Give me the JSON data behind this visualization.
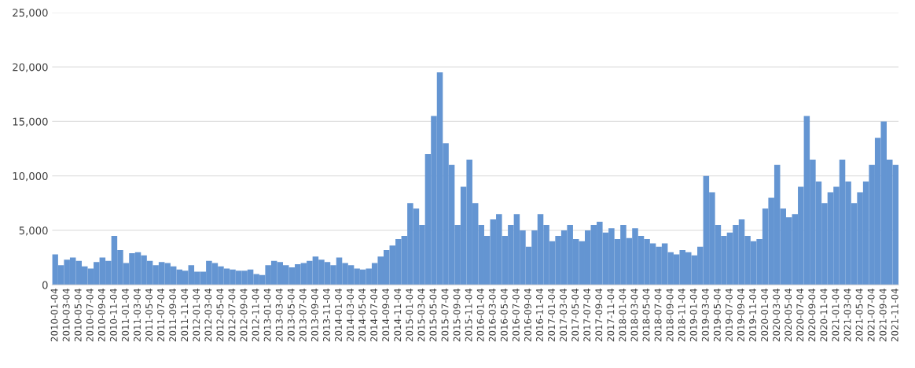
{
  "chart_data": {
    "type": "bar",
    "color": "#6495d2",
    "categories": [
      "2010-01-04",
      null,
      "2010-03-04",
      null,
      "2010-05-04",
      null,
      "2010-07-04",
      null,
      "2010-09-04",
      null,
      "2010-11-04",
      null,
      "2011-01-04",
      null,
      "2011-03-04",
      null,
      "2011-05-04",
      null,
      "2011-07-04",
      null,
      "2011-09-04",
      null,
      "2011-11-04",
      null,
      "2012-01-04",
      null,
      "2012-03-04",
      null,
      "2012-05-04",
      null,
      "2012-07-04",
      null,
      "2012-09-04",
      null,
      "2012-11-04",
      null,
      "2013-01-04",
      null,
      "2013-03-04",
      null,
      "2013-05-04",
      null,
      "2013-07-04",
      null,
      "2013-09-04",
      null,
      "2013-11-04",
      null,
      "2014-01-04",
      null,
      "2014-03-04",
      null,
      "2014-05-04",
      null,
      "2014-07-04",
      null,
      "2014-09-04",
      null,
      "2014-11-04",
      null,
      "2015-01-04",
      null,
      "2015-03-04",
      null,
      "2015-05-04",
      null,
      "2015-07-04",
      null,
      "2015-09-04",
      null,
      "2015-11-04",
      null,
      "2016-01-04",
      null,
      "2016-03-04",
      null,
      "2016-05-04",
      null,
      "2016-07-04",
      null,
      "2016-09-04",
      null,
      "2016-11-04",
      null,
      "2017-01-04",
      null,
      "2017-03-04",
      null,
      "2017-05-04",
      null,
      "2017-07-04",
      null,
      "2017-09-04",
      null,
      "2017-11-04",
      null,
      "2018-01-04",
      null,
      "2018-03-04",
      null,
      "2018-05-04",
      null,
      "2018-07-04",
      null,
      "2018-09-04",
      null,
      "2018-11-04",
      null,
      "2019-01-04",
      null,
      "2019-03-04",
      null,
      "2019-05-04",
      null,
      "2019-07-04",
      null,
      "2019-09-04",
      null,
      "2019-11-04",
      null,
      "2020-01-04",
      null,
      "2020-03-04",
      null,
      "2020-05-04",
      null,
      "2020-07-04",
      null,
      "2020-09-04",
      null,
      "2020-11-04",
      null,
      "2021-01-04",
      null,
      "2021-03-04",
      null,
      "2021-05-04",
      null,
      "2021-07-04",
      null,
      "2021-09-04",
      null,
      "2021-11-04"
    ],
    "values": [
      2800,
      1800,
      2300,
      2500,
      2200,
      1700,
      1500,
      2100,
      2500,
      2200,
      4500,
      3200,
      2000,
      2900,
      3000,
      2700,
      2200,
      1800,
      2100,
      2000,
      1700,
      1400,
      1300,
      1800,
      1200,
      1200,
      2200,
      2000,
      1700,
      1500,
      1400,
      1300,
      1300,
      1400,
      1000,
      900,
      1800,
      2200,
      2100,
      1800,
      1600,
      1900,
      2000,
      2200,
      2600,
      2300,
      2100,
      1800,
      2500,
      2000,
      1800,
      1500,
      1400,
      1500,
      2000,
      2600,
      3200,
      3600,
      4200,
      4500,
      7500,
      7000,
      5500,
      12000,
      15500,
      19500,
      13000,
      11000,
      5500,
      9000,
      11500,
      7500,
      5500,
      4500,
      6000,
      6500,
      4500,
      5500,
      6500,
      5000,
      3500,
      5000,
      6500,
      5500,
      4000,
      4500,
      5000,
      5500,
      4200,
      4000,
      5000,
      5500,
      5800,
      4800,
      5200,
      4200,
      5500,
      4300,
      5200,
      4500,
      4200,
      3800,
      3500,
      3800,
      3000,
      2800,
      3200,
      3000,
      2700,
      3500,
      10000,
      8500,
      5500,
      4500,
      4800,
      5500,
      6000,
      4500,
      4000,
      4200,
      7000,
      8000,
      11000,
      7000,
      6200,
      6500,
      9000,
      15500,
      11500,
      9500,
      7500,
      8500,
      9000,
      11500,
      9500,
      7500,
      8500,
      9500,
      11000,
      13500,
      15000,
      11500,
      11000
    ],
    "ylim": [
      0,
      25000
    ],
    "yticks": [
      0,
      {
        "value": 5000,
        "label": "5,000"
      },
      {
        "value": 10000,
        "label": "10,000"
      },
      {
        "value": 15000,
        "label": "15,000"
      },
      {
        "value": 20000,
        "label": "20,000"
      },
      {
        "value": 25000,
        "label": "25,000"
      }
    ],
    "grid": "y"
  }
}
